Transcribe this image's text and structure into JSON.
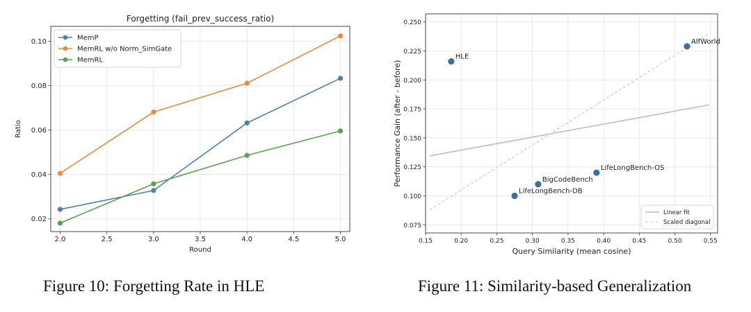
{
  "chart_data": [
    {
      "type": "line",
      "title": "Forgetting (fail_prev_success_ratio)",
      "xlabel": "Round",
      "ylabel": "Ratio",
      "xlim": [
        1.9,
        5.1
      ],
      "ylim": [
        0.0143,
        0.1067
      ],
      "xticks": [
        2.0,
        2.5,
        3.0,
        3.5,
        4.0,
        4.5,
        5.0
      ],
      "xtick_labels": [
        "2.0",
        "2.5",
        "3.0",
        "3.5",
        "4.0",
        "4.5",
        "5.0"
      ],
      "yticks": [
        0.02,
        0.04,
        0.06,
        0.08,
        0.1
      ],
      "ytick_labels": [
        "0.02",
        "0.04",
        "0.06",
        "0.08",
        "0.10"
      ],
      "grid": true,
      "legend": "top-left",
      "x": [
        2.0,
        3.0,
        4.0,
        5.0
      ],
      "series": [
        {
          "name": "MemP",
          "color": "#4a7fb3",
          "values": [
            0.0243,
            0.0328,
            0.0632,
            0.0833
          ]
        },
        {
          "name": "MemRL w/o Norm_SimGate",
          "color": "#ee8a3a",
          "values": [
            0.0405,
            0.0681,
            0.0811,
            0.1024
          ]
        },
        {
          "name": "MemRL",
          "color": "#58a14e",
          "values": [
            0.0181,
            0.0358,
            0.0486,
            0.0596
          ]
        }
      ]
    },
    {
      "type": "scatter",
      "title": "",
      "xlabel": "Query Similarity (mean cosine)",
      "ylabel": "Performance Gain (after - before)",
      "xlim": [
        0.15,
        0.56
      ],
      "ylim": [
        0.068,
        0.257
      ],
      "xticks": [
        0.15,
        0.2,
        0.25,
        0.3,
        0.35,
        0.4,
        0.45,
        0.5,
        0.55
      ],
      "xtick_labels": [
        "0.15",
        "0.20",
        "0.25",
        "0.30",
        "0.35",
        "0.40",
        "0.45",
        "0.50",
        "0.55"
      ],
      "yticks": [
        0.075,
        0.1,
        0.125,
        0.15,
        0.175,
        0.2,
        0.225,
        0.25
      ],
      "ytick_labels": [
        "0.075",
        "0.100",
        "0.125",
        "0.150",
        "0.175",
        "0.200",
        "0.225",
        "0.250"
      ],
      "grid": true,
      "legend": "bottom-right",
      "point_color": "#3a6fa8",
      "points": [
        {
          "label": "HLE",
          "x": 0.186,
          "y": 0.216
        },
        {
          "label": "AlfWorld",
          "x": 0.517,
          "y": 0.229
        },
        {
          "label": "LifeLongBench-OS",
          "x": 0.39,
          "y": 0.12
        },
        {
          "label": "BigCodeBench",
          "x": 0.308,
          "y": 0.11
        },
        {
          "label": "LifeLongBench-DB",
          "x": 0.275,
          "y": 0.1
        }
      ],
      "lines": [
        {
          "name": "Linear fit",
          "color": "#b3c7dc",
          "style": "solid",
          "x": [
            0.156,
            0.548
          ],
          "y": [
            0.1345,
            0.1785
          ]
        },
        {
          "name": "Scaled diagonal",
          "color": "#c8c8c8",
          "style": "dashed",
          "x": [
            0.156,
            0.548
          ],
          "y": [
            0.088,
            0.24
          ]
        }
      ]
    }
  ],
  "captions": {
    "figure10": "Figure 10: Forgetting Rate in HLE",
    "figure11": "Figure 11: Similarity-based Generalization"
  }
}
